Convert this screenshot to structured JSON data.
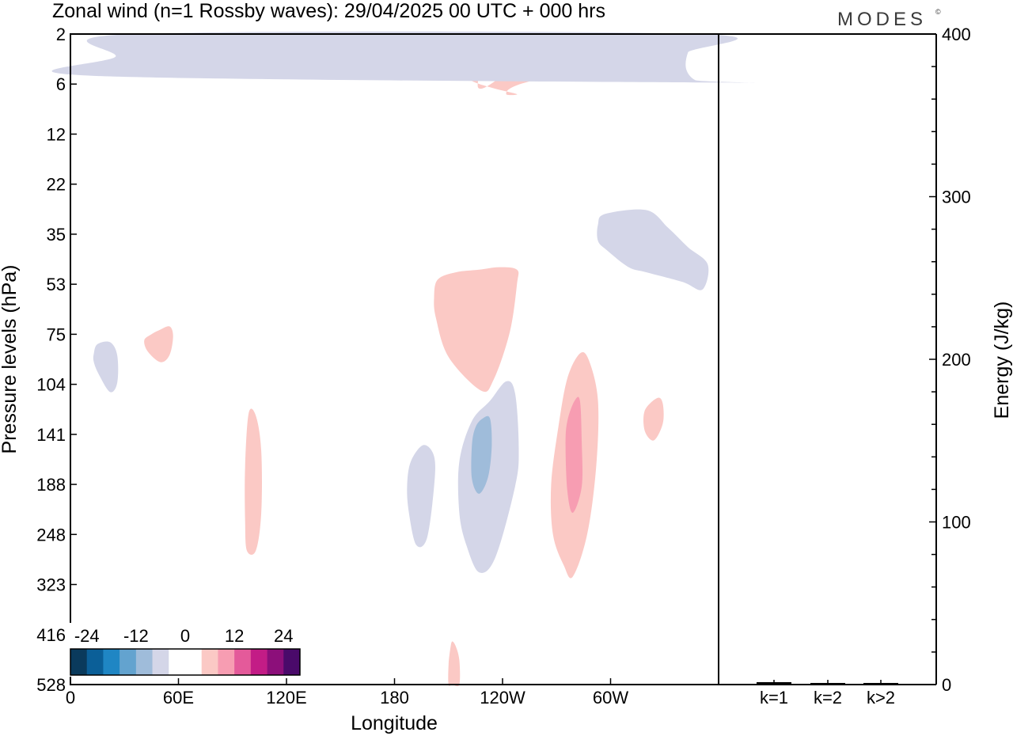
{
  "chart_data": {
    "type": "heatmap",
    "title": "Zonal wind (n=1 Rossby waves):  29/04/2025  00 UTC  + 000 hrs",
    "brand": "MODES",
    "brand_mark": "©",
    "xlabel": "Longitude",
    "ylabel": "Pressure levels (hPa)",
    "y2label": "Energy (J/kg)",
    "x_ticks": [
      "0",
      "60E",
      "120E",
      "180",
      "120W",
      "60W"
    ],
    "y_ticks": [
      "2",
      "6",
      "12",
      "22",
      "35",
      "53",
      "75",
      "104",
      "141",
      "188",
      "248",
      "323",
      "416",
      "528"
    ],
    "y2_ticks": [
      "0",
      "100",
      "200",
      "300",
      "400"
    ],
    "y2_range": [
      0,
      400
    ],
    "bar_categories": [
      "k=1",
      "k=2",
      "k>2"
    ],
    "bar_values": [
      1,
      0.5,
      0.5
    ],
    "colorbar": {
      "labels": [
        "-24",
        "-12",
        "0",
        "12",
        "24"
      ],
      "colors": [
        "#0a3a5c",
        "#0b5f98",
        "#1f86c4",
        "#63a3cf",
        "#9fbcda",
        "#d4d6e8",
        "#ffffff",
        "#ffffff",
        "#fbc9c5",
        "#f79db2",
        "#e45a9a",
        "#c31c86",
        "#8c0f7a",
        "#4a0a6a"
      ]
    },
    "contours": [
      {
        "color": "#fbc9c5",
        "x": [
          -130,
          -95,
          -60,
          -62,
          -80,
          -112,
          -118,
          -112,
          -124,
          -134,
          -140,
          -134
        ],
        "y": [
          6.3,
          2.7,
          2.7,
          3.3,
          4.3,
          6.1,
          6.9,
          6.9,
          6.4,
          5.9,
          5.2,
          5.2
        ]
      },
      {
        "color": "#fbc9c5",
        "x": [
          -96,
          -69,
          -67,
          -70,
          -78,
          -84,
          -94,
          -97
        ],
        "y": [
          2.0,
          2.0,
          2.3,
          2.8,
          3.2,
          3.4,
          3.0,
          2.4
        ]
      },
      {
        "color": "#fbc9c5",
        "x": [
          -61,
          -33,
          -28,
          -28,
          -37,
          -51,
          -58,
          -61
        ],
        "y": [
          2.0,
          2.0,
          2.0,
          2.1,
          2.2,
          2.2,
          2.1,
          2.0
        ]
      },
      {
        "color": "#d4d6e8",
        "x": [
          -11,
          35,
          25,
          12,
          -3,
          -13,
          -18,
          -17
        ],
        "y": [
          2.0,
          2.0,
          3.3,
          5.0,
          5.8,
          5.5,
          4.3,
          3.0
        ]
      },
      {
        "color": "#fbc9c5",
        "x": [
          -133,
          -122,
          -112,
          -112,
          -116,
          -125,
          -132,
          -150,
          -157,
          -158,
          -156,
          -146
        ],
        "y": [
          47,
          46,
          47,
          53,
          74,
          101,
          108,
          87,
          67,
          58,
          51,
          48
        ]
      },
      {
        "color": "#d4d6e8",
        "x": [
          -63,
          -40,
          -28,
          -17,
          -6,
          -9,
          -20,
          -40,
          -50,
          -62,
          -67,
          -67
        ],
        "y": [
          29,
          28,
          33,
          39,
          45,
          55,
          52,
          48,
          46,
          40,
          37,
          32
        ]
      },
      {
        "color": "#fbc9c5",
        "x": [
          49,
          55,
          57,
          55,
          50,
          43,
          41,
          45
        ],
        "y": [
          73,
          71,
          76,
          86,
          90,
          84,
          78,
          75
        ]
      },
      {
        "color": "#d4d6e8",
        "x": [
          15,
          22,
          26,
          26,
          22,
          16,
          13,
          13
        ],
        "y": [
          80,
          79,
          86,
          103,
          109,
          98,
          90,
          85
        ]
      },
      {
        "color": "#fbc9c5",
        "x": [
          -34,
          -31,
          -31,
          -36,
          -41,
          -41
        ],
        "y": [
          113,
          117,
          132,
          146,
          138,
          122
        ]
      },
      {
        "color": "#d4d6e8",
        "x": [
          -164,
          -158,
          -158,
          -162,
          -168,
          -172,
          -173,
          -171
        ],
        "y": [
          150,
          160,
          190,
          253,
          262,
          220,
          190,
          165
        ]
      },
      {
        "color": "#d4d6e8",
        "x": [
          -118,
          -113,
          -111,
          -113,
          -124,
          -133,
          -140,
          -144,
          -144,
          -137,
          -127
        ],
        "y": [
          102,
          110,
          153,
          190,
          280,
          303,
          263,
          220,
          165,
          130,
          115
        ]
      },
      {
        "color": "#9fbcda",
        "x": [
          -131,
          -127,
          -126,
          -128,
          -133,
          -137,
          -137,
          -135
        ],
        "y": [
          128,
          128,
          150,
          180,
          198,
          182,
          150,
          135
        ]
      },
      {
        "color": "#fbc9c5",
        "x": [
          -77,
          -72,
          -67,
          -68,
          -73,
          -81,
          -86,
          -92,
          -93,
          -89,
          -84
        ],
        "y": [
          85,
          89,
          115,
          170,
          248,
          310,
          292,
          248,
          188,
          135,
          100
        ]
      },
      {
        "color": "#f79db2",
        "x": [
          -80,
          -77,
          -76,
          -76,
          -81,
          -84,
          -85,
          -84
        ],
        "y": [
          115,
          115,
          148,
          190,
          220,
          195,
          150,
          130
        ]
      },
      {
        "color": "#fbc9c5",
        "x": [
          99,
          103,
          106,
          106,
          103,
          98,
          97,
          97
        ],
        "y": [
          124,
          126,
          155,
          220,
          270,
          270,
          230,
          170
        ]
      },
      {
        "color": "#fbc9c5",
        "x": [
          -148,
          -146,
          -144,
          -144,
          -148,
          -150,
          -150,
          -149
        ],
        "y": [
          430,
          440,
          470,
          528,
          528,
          528,
          480,
          445
        ]
      }
    ]
  }
}
